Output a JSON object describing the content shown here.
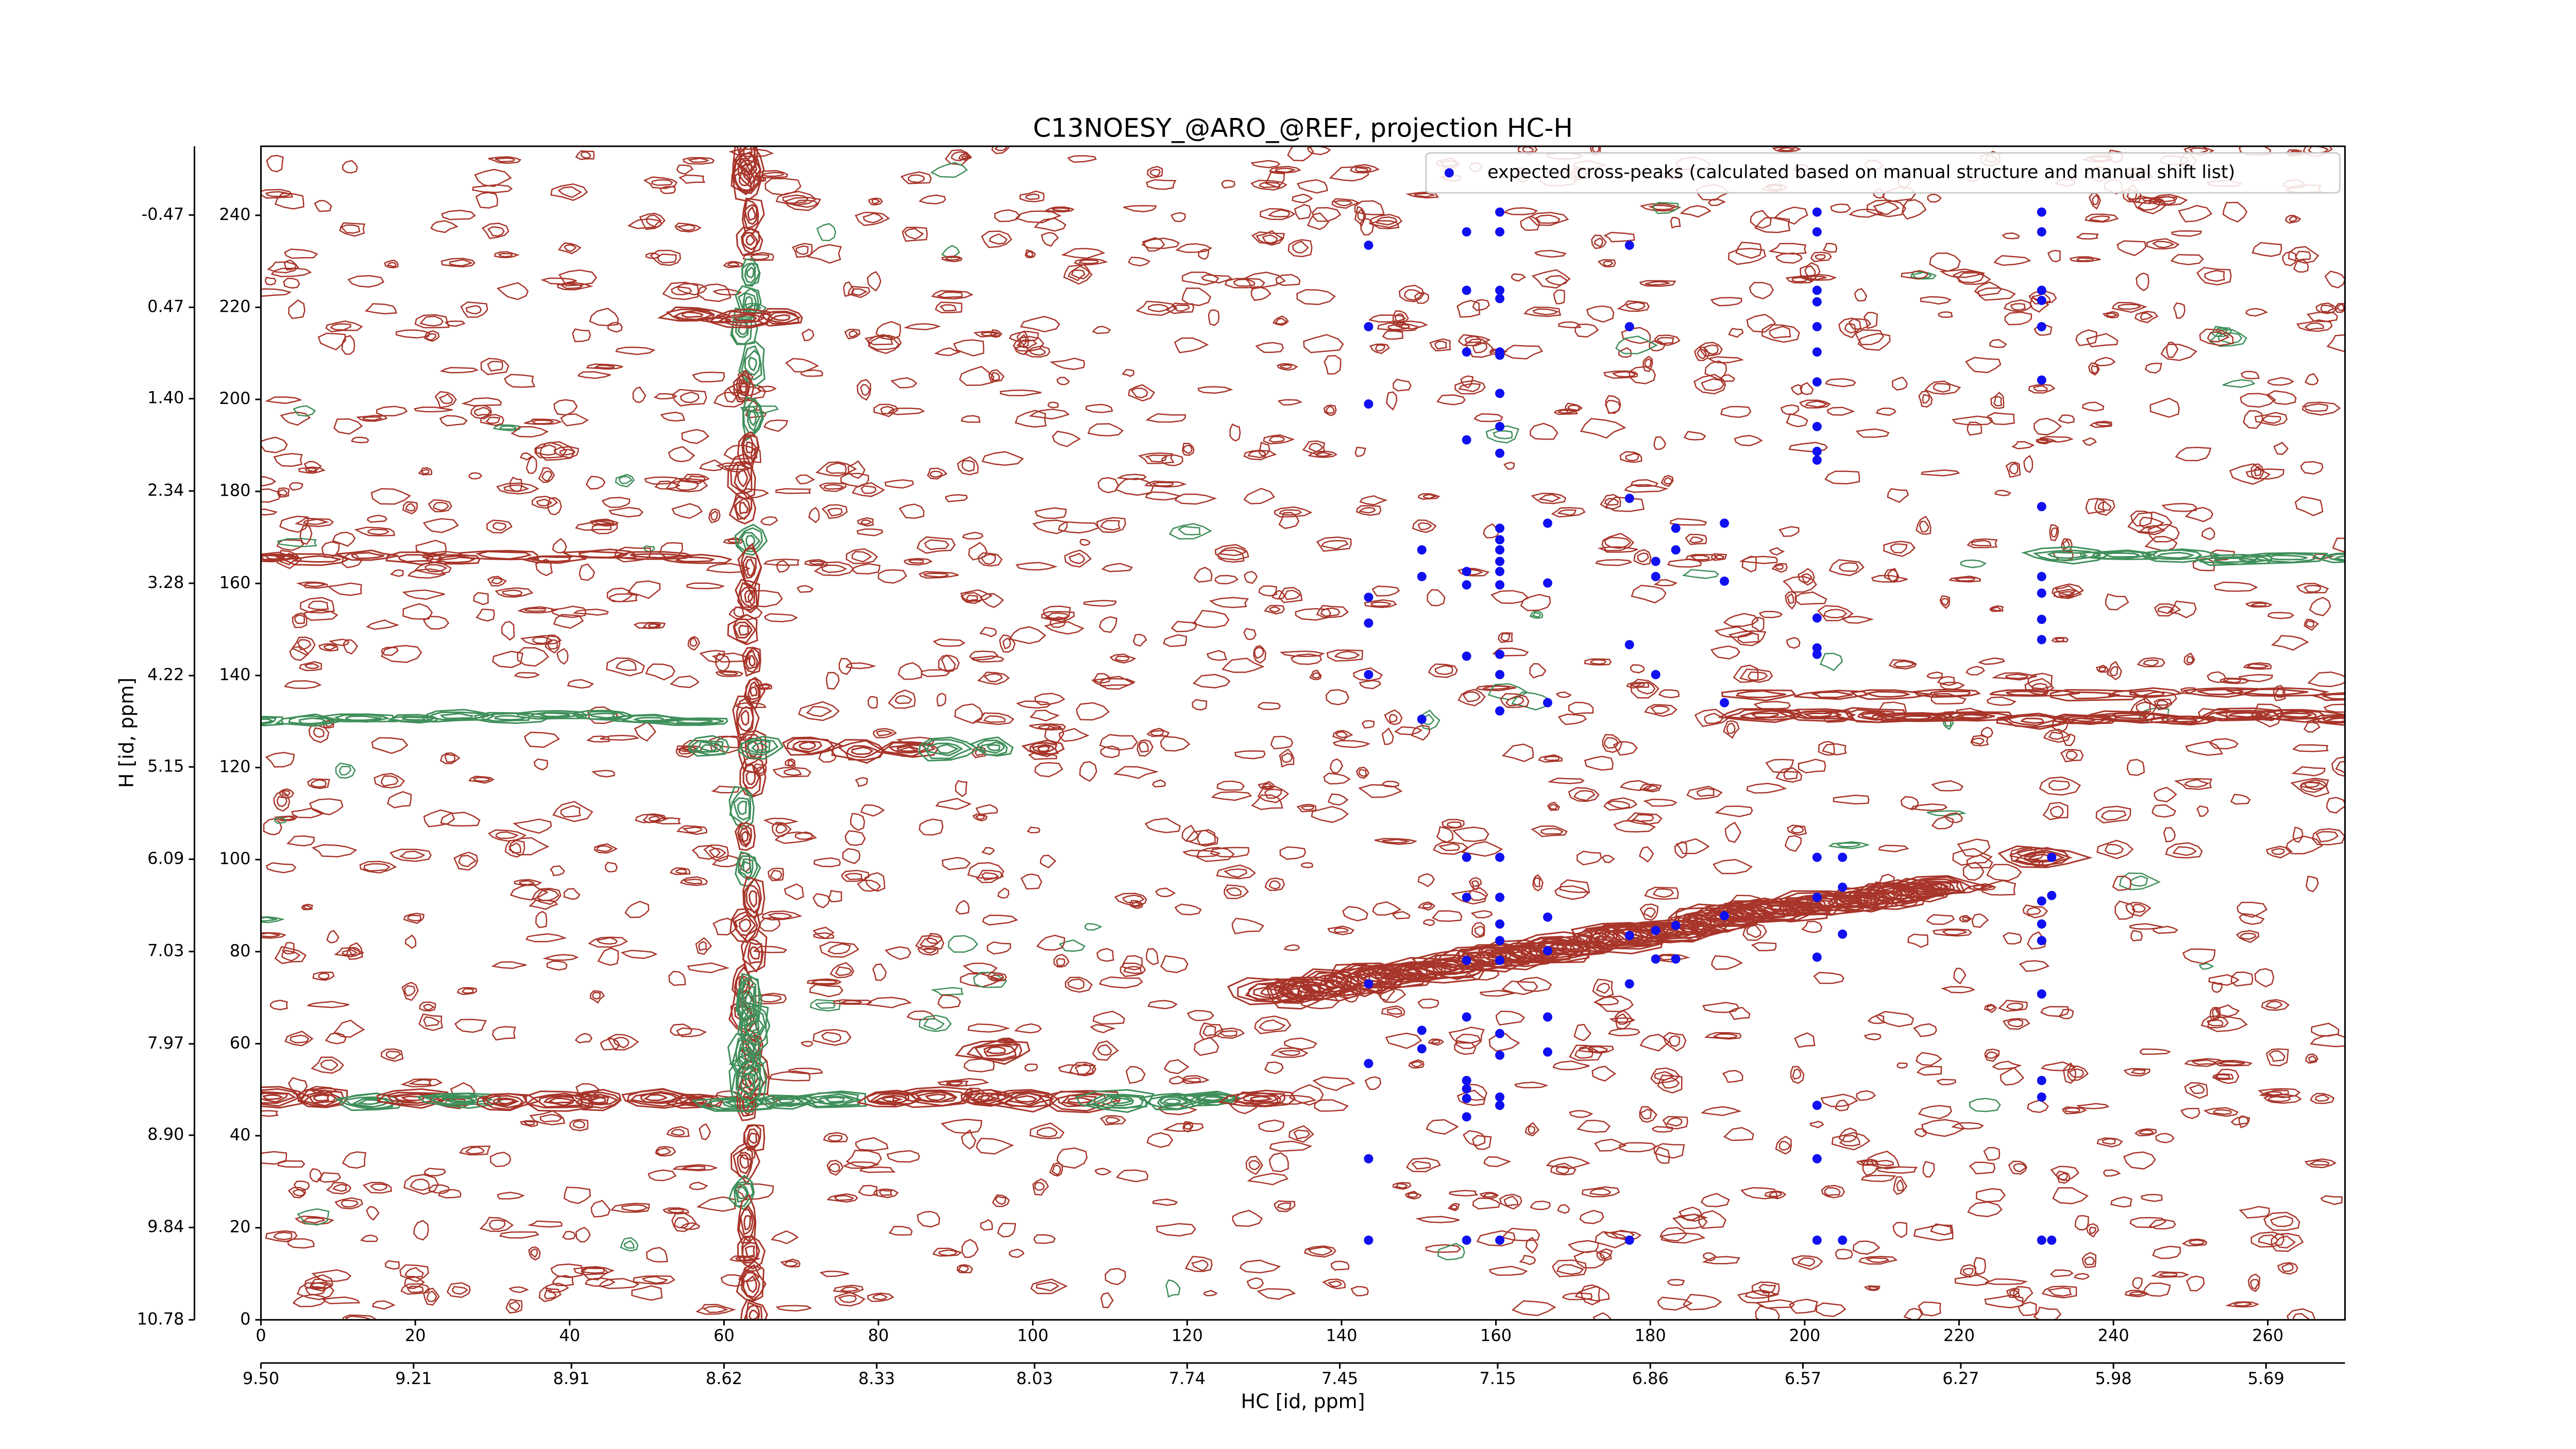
{
  "chart_data": {
    "type": "scatter",
    "title": "C13NOESY_@ARO_@REF, projection HC-H",
    "xlabel": "HC [id, ppm]",
    "ylabel": "H [id, ppm]",
    "xlim": [
      0,
      270
    ],
    "ylim": [
      0,
      255
    ],
    "xticks": [
      0,
      20,
      40,
      60,
      80,
      100,
      120,
      140,
      160,
      180,
      200,
      220,
      240,
      260
    ],
    "yticks": [
      0,
      20,
      40,
      60,
      80,
      100,
      120,
      140,
      160,
      180,
      200,
      220,
      240
    ],
    "x2lim": [
      9.5,
      5.54
    ],
    "x2ticks": [
      {
        "value": 9.5,
        "label": "9.50"
      },
      9.21,
      8.91,
      8.62,
      8.33,
      8.03,
      7.74,
      7.45,
      7.15,
      6.86,
      6.57,
      6.27,
      5.98,
      5.69
    ],
    "y2lim": [
      10.78,
      -1.17
    ],
    "y2ticks": [
      10.78,
      9.84,
      {
        "value": 8.9,
        "label": "8.90"
      },
      7.97,
      7.03,
      6.09,
      5.15,
      4.22,
      3.28,
      2.34,
      {
        "value": 1.4,
        "label": "1.40"
      },
      0.47,
      -0.47
    ],
    "legend": "upper right",
    "series": [
      {
        "name": "expected cross-peaks (calculated based on manual structure and manual shift list)",
        "color": "#1010f0",
        "x": [
          143.5,
          143.5,
          143.5,
          143.5,
          143.5,
          143.5,
          143.5,
          143.5,
          143.5,
          143.5,
          150.4,
          150.4,
          150.4,
          150.4,
          150.4,
          156.2,
          156.2,
          156.2,
          156.2,
          156.2,
          156.2,
          156.2,
          156.2,
          156.2,
          156.2,
          156.2,
          156.2,
          156.2,
          156.2,
          156.2,
          156.2,
          160.5,
          160.5,
          160.5,
          160.5,
          160.5,
          160.5,
          160.5,
          160.5,
          160.5,
          160.5,
          160.5,
          160.5,
          160.5,
          160.5,
          160.5,
          160.5,
          160.5,
          160.5,
          160.5,
          160.5,
          160.5,
          160.5,
          160.5,
          160.5,
          160.5,
          160.5,
          160.5,
          160.5,
          166.7,
          166.7,
          166.7,
          166.7,
          166.7,
          166.7,
          166.7,
          177.3,
          177.3,
          177.3,
          177.3,
          177.3,
          177.3,
          177.3,
          180.7,
          180.7,
          180.7,
          180.7,
          180.7,
          183.3,
          183.3,
          183.3,
          183.3,
          189.6,
          189.6,
          189.6,
          189.6,
          201.6,
          201.6,
          201.6,
          201.6,
          201.6,
          201.6,
          201.6,
          201.6,
          201.6,
          201.6,
          201.6,
          201.6,
          201.6,
          201.6,
          201.6,
          201.6,
          201.6,
          201.6,
          201.6,
          204.9,
          204.9,
          204.9,
          204.9,
          230.7,
          230.7,
          230.7,
          230.7,
          230.7,
          230.7,
          230.7,
          230.7,
          230.7,
          230.7,
          230.7,
          230.7,
          230.7,
          230.7,
          230.7,
          230.7,
          230.7,
          230.7,
          232,
          232,
          232
        ],
        "values": [
          233.5,
          215.8,
          199.0,
          157.0,
          151.4,
          140.2,
          73.0,
          55.7,
          35.0,
          17.3,
          167.3,
          161.5,
          130.5,
          62.9,
          58.9,
          236.4,
          223.7,
          210.3,
          191.2,
          162.6,
          159.7,
          144.2,
          100.5,
          91.8,
          78.1,
          65.8,
          52.0,
          50.2,
          48.1,
          44.1,
          17.3,
          240.7,
          236.4,
          223.7,
          221.9,
          210.3,
          209.6,
          201.3,
          194.1,
          188.3,
          172.0,
          169.5,
          167.3,
          164.8,
          162.6,
          159.7,
          144.6,
          140.2,
          132.3,
          100.5,
          91.8,
          86.0,
          82.4,
          78.1,
          62.2,
          57.5,
          48.4,
          46.6,
          17.3,
          173.1,
          160.1,
          134.1,
          87.5,
          80.2,
          65.8,
          58.2,
          233.5,
          215.8,
          178.5,
          146.7,
          83.5,
          73.0,
          17.3,
          164.8,
          161.5,
          140.2,
          84.6,
          78.4,
          172.0,
          167.3,
          85.7,
          78.4,
          173.1,
          160.5,
          134.1,
          87.8,
          240.7,
          236.4,
          223.7,
          221.2,
          215.8,
          210.3,
          203.8,
          194.1,
          188.7,
          186.8,
          152.5,
          146.0,
          144.6,
          100.5,
          91.8,
          78.8,
          46.6,
          35.0,
          17.3,
          100.5,
          94.0,
          83.8,
          17.3,
          240.7,
          236.4,
          223.7,
          221.5,
          215.8,
          204.2,
          176.7,
          161.5,
          157.9,
          152.2,
          147.8,
          91.0,
          86.0,
          82.4,
          70.8,
          52.0,
          48.4,
          17.3,
          100.5,
          92.2,
          17.3
        ]
      }
    ]
  }
}
